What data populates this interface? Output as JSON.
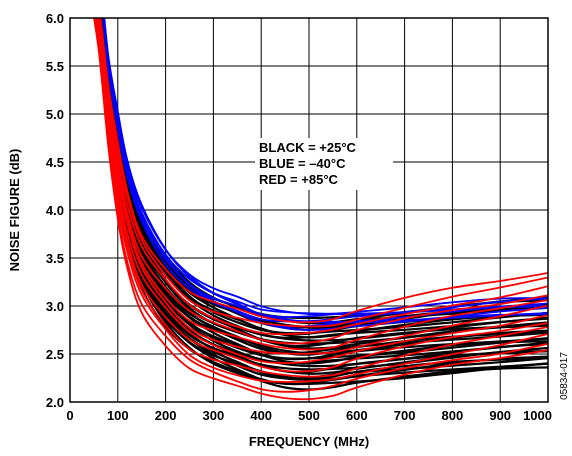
{
  "chart_data": {
    "type": "line",
    "title": "",
    "xlabel": "FREQUENCY (MHz)",
    "ylabel": "NOISE FIGURE (dB)",
    "xlim": [
      0,
      1000
    ],
    "ylim": [
      2.0,
      6.0
    ],
    "x_ticks": [
      "0",
      "100",
      "200",
      "300",
      "400",
      "500",
      "600",
      "700",
      "800",
      "900",
      "1000"
    ],
    "y_ticks": [
      "2.0",
      "2.5",
      "3.0",
      "3.5",
      "4.0",
      "4.5",
      "5.0",
      "5.5",
      "6.0"
    ],
    "grid": true,
    "legend_text": [
      "BLACK = +25°C",
      "BLUE = –40°C",
      "RED = +85°C"
    ],
    "figure_id": "05834-017",
    "x": [
      40,
      60,
      80,
      100,
      120,
      150,
      200,
      250,
      300,
      350,
      400,
      450,
      500,
      550,
      600,
      700,
      800,
      900,
      1000
    ],
    "series": [
      {
        "temp": "+25°C",
        "color": "#000000",
        "count": 30,
        "spread": 0.1,
        "base_values": [
          6.6,
          6.0,
          5.1,
          4.45,
          4.0,
          3.55,
          3.15,
          2.9,
          2.75,
          2.65,
          2.56,
          2.51,
          2.5,
          2.52,
          2.55,
          2.6,
          2.65,
          2.69,
          2.72
        ],
        "offset_range": [
          -0.35,
          0.35
        ]
      },
      {
        "temp": "–40°C",
        "color": "#0000ff",
        "count": 8,
        "spread": 0.04,
        "base_values": [
          6.9,
          6.5,
          5.55,
          4.95,
          4.45,
          4.0,
          3.55,
          3.28,
          3.12,
          3.02,
          2.92,
          2.88,
          2.87,
          2.88,
          2.89,
          2.92,
          2.96,
          3.0,
          3.02
        ],
        "offset_range": [
          -0.1,
          0.06
        ]
      },
      {
        "temp": "+85°C",
        "color": "#ff0000",
        "count": 12,
        "spread": 0.12,
        "base_values": [
          6.4,
          5.8,
          4.85,
          4.15,
          3.65,
          3.2,
          2.85,
          2.6,
          2.48,
          2.4,
          2.33,
          2.3,
          2.3,
          2.33,
          2.4,
          2.52,
          2.62,
          2.7,
          2.8
        ],
        "offset_range": [
          -0.25,
          0.55
        ]
      }
    ]
  }
}
